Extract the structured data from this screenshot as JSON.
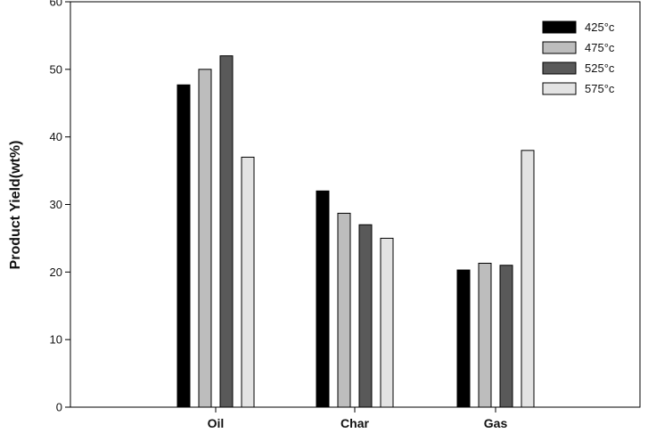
{
  "chart_data": {
    "type": "bar",
    "categories": [
      "Oil",
      "Char",
      "Gas"
    ],
    "series": [
      {
        "name": "425°c",
        "color": "#000000",
        "values": [
          47.7,
          32.0,
          20.3
        ]
      },
      {
        "name": "475°c",
        "color": "#bdbdbd",
        "values": [
          50.0,
          28.7,
          21.3
        ]
      },
      {
        "name": "525°c",
        "color": "#595959",
        "values": [
          52.0,
          27.0,
          21.0
        ]
      },
      {
        "name": "575°c",
        "color": "#e3e3e3",
        "values": [
          37.0,
          25.0,
          38.0
        ]
      }
    ],
    "ylabel": "Product Yield(wt%)",
    "xlabel": "",
    "ylim": [
      0,
      60
    ],
    "yticks": [
      0,
      10,
      20,
      30,
      40,
      50,
      60
    ],
    "legend_position": "top-right",
    "grid": false
  }
}
